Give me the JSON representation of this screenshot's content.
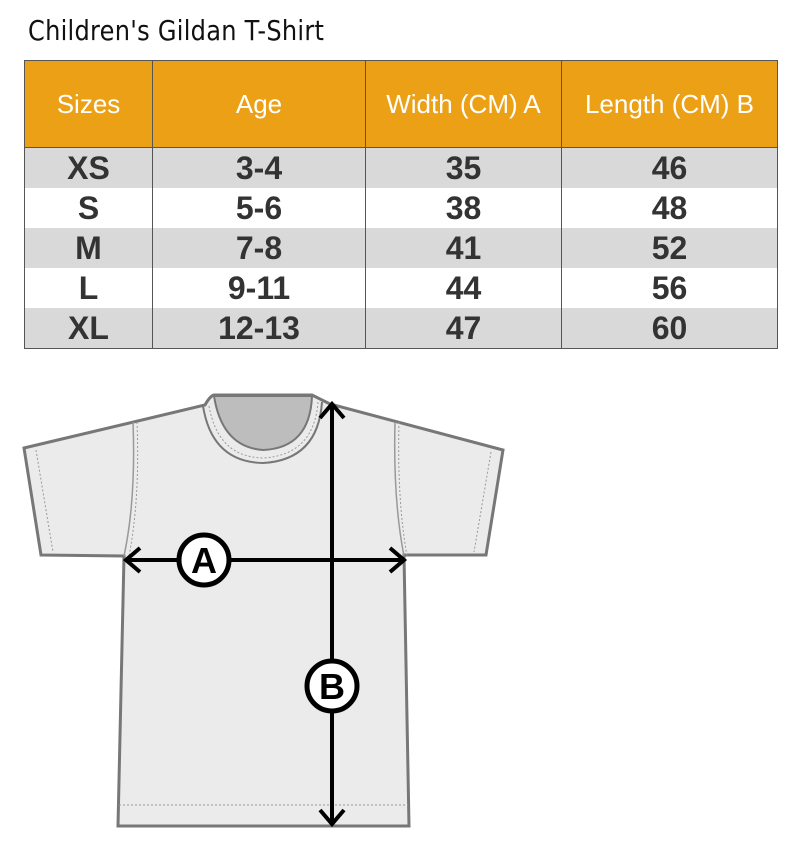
{
  "title": "Children's Gildan T-Shirt",
  "colors": {
    "header": "#eba016",
    "row_alt": "#d9d9d9",
    "shirt": "#ebebeb"
  },
  "table": {
    "headers": [
      "Sizes",
      "Age",
      "Width (CM) A",
      "Length  (CM) B"
    ],
    "rows": [
      [
        "XS",
        "3-4",
        "35",
        "46"
      ],
      [
        "S",
        "5-6",
        "38",
        "48"
      ],
      [
        "M",
        "7-8",
        "41",
        "52"
      ],
      [
        "L",
        "9-11",
        "44",
        "56"
      ],
      [
        "XL",
        "12-13",
        "47",
        "60"
      ]
    ]
  },
  "diagram": {
    "label_a": "A",
    "label_b": "B"
  }
}
